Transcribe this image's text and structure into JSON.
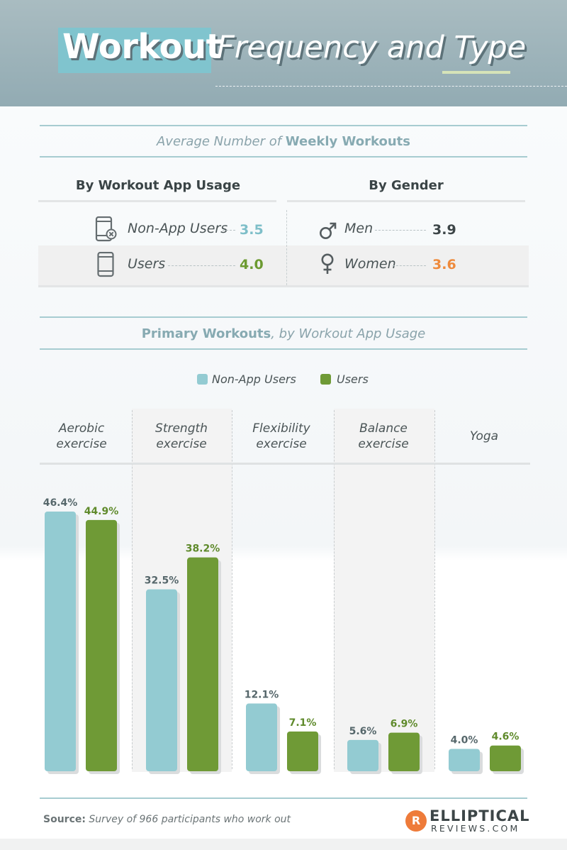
{
  "header": {
    "title_bold": "Workout",
    "title_rest": "Frequency and Type"
  },
  "weekly": {
    "title_prefix": "Average Number of ",
    "title_bold": "Weekly Workouts",
    "col_app": "By Workout App Usage",
    "col_gender": "By Gender",
    "rows_app": [
      {
        "label": "Non-App Users",
        "value": "3.5",
        "color": "#7ebfc9",
        "icon": "phone-x-icon"
      },
      {
        "label": "Users",
        "value": "4.0",
        "color": "#6c9a31",
        "icon": "phone-icon"
      }
    ],
    "rows_gender": [
      {
        "label": "Men",
        "value": "3.9",
        "color": "#3c4547",
        "icon": "male-symbol-icon"
      },
      {
        "label": "Women",
        "value": "3.6",
        "color": "#ee8a3c",
        "icon": "female-symbol-icon"
      }
    ]
  },
  "primary": {
    "title_bold": "Primary Workouts",
    "title_rest": ", by Workout App Usage"
  },
  "chart_data": {
    "type": "bar",
    "categories": [
      "Aerobic\nexercise",
      "Strength\nexercise",
      "Flexibility\nexercise",
      "Balance\nexercise",
      "Yoga"
    ],
    "series": [
      {
        "name": "Non-App Users",
        "color": "#93cbd2",
        "values": [
          46.4,
          32.5,
          12.1,
          5.6,
          4.0
        ]
      },
      {
        "name": "Users",
        "color": "#6f9a36",
        "values": [
          44.9,
          38.2,
          7.1,
          6.9,
          4.6
        ]
      }
    ],
    "value_format": "percent",
    "ylim": [
      0,
      46.4
    ],
    "legend_position": "top-center",
    "grid": false
  },
  "footer": {
    "source_label": "Source:",
    "source_text": "Survey of 966 participants who work out",
    "logo_letter": "R",
    "logo_line1": "ELLIPTICAL",
    "logo_line2": "REVIEWS.COM"
  }
}
